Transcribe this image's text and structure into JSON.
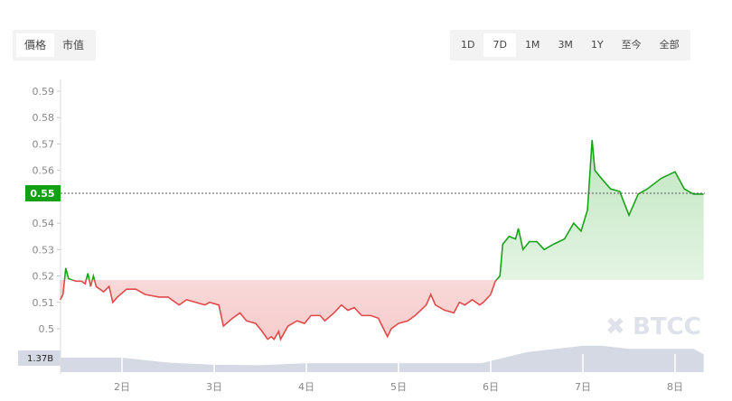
{
  "metric_tabs": [
    {
      "label": "價格",
      "active": true
    },
    {
      "label": "市值",
      "active": false
    }
  ],
  "range_tabs": [
    {
      "label": "1D",
      "active": false
    },
    {
      "label": "7D",
      "active": true
    },
    {
      "label": "1M",
      "active": false
    },
    {
      "label": "3M",
      "active": false
    },
    {
      "label": "1Y",
      "active": false
    },
    {
      "label": "至今",
      "active": false
    },
    {
      "label": "全部",
      "active": false
    }
  ],
  "watermark": "BTCC",
  "colors": {
    "up": "#1aa31a",
    "down": "#e04a4a",
    "current_badge": "#14a014",
    "volume": "#d5d9e4"
  },
  "chart_data": {
    "type": "line",
    "title": "",
    "xlabel": "",
    "ylabel": "",
    "ylim": [
      0.495,
      0.595
    ],
    "y_ticks": [
      "0.59",
      "0.58",
      "0.57",
      "0.56",
      "0.55",
      "0.54",
      "0.53",
      "0.52",
      "0.51",
      "0.5"
    ],
    "x_ticks": [
      {
        "day": 2,
        "label": "2日"
      },
      {
        "day": 3,
        "label": "3日"
      },
      {
        "day": 4,
        "label": "4日"
      },
      {
        "day": 5,
        "label": "5日"
      },
      {
        "day": 6,
        "label": "6日"
      },
      {
        "day": 7,
        "label": "7日"
      },
      {
        "day": 8,
        "label": "8日"
      }
    ],
    "current_price": "0.55",
    "baseline": 0.5185,
    "grid": false,
    "series": [
      {
        "x": [
          1.33,
          1.36,
          1.39,
          1.42,
          1.5,
          1.56,
          1.6,
          1.63,
          1.66,
          1.69,
          1.72,
          1.8,
          1.86,
          1.9,
          1.95,
          2.05,
          2.15,
          2.25,
          2.4,
          2.5,
          2.62,
          2.7,
          2.8,
          2.9,
          2.95,
          3.05,
          3.1,
          3.2,
          3.28,
          3.35,
          3.45,
          3.52,
          3.58,
          3.62,
          3.65,
          3.7,
          3.72,
          3.8,
          3.9,
          3.98,
          4.05,
          4.15,
          4.2,
          4.3,
          4.38,
          4.45,
          4.52,
          4.6,
          4.7,
          4.78,
          4.88,
          4.92,
          5.0,
          5.1,
          5.18,
          5.3,
          5.35,
          5.4,
          5.5,
          5.6,
          5.66,
          5.72,
          5.8,
          5.88,
          5.92,
          6.0,
          6.05,
          6.1,
          6.13,
          6.2,
          6.27,
          6.3,
          6.35,
          6.42,
          6.5,
          6.58,
          6.68,
          6.8,
          6.9,
          6.98,
          7.05,
          7.1,
          7.13,
          7.2,
          7.3,
          7.4,
          7.5,
          7.6,
          7.7,
          7.85,
          8.0,
          8.1,
          8.2,
          8.31
        ],
        "values": [
          0.511,
          0.513,
          0.523,
          0.519,
          0.518,
          0.518,
          0.517,
          0.521,
          0.516,
          0.52,
          0.516,
          0.514,
          0.516,
          0.51,
          0.512,
          0.515,
          0.515,
          0.513,
          0.512,
          0.512,
          0.509,
          0.511,
          0.51,
          0.509,
          0.51,
          0.509,
          0.501,
          0.504,
          0.506,
          0.503,
          0.502,
          0.499,
          0.496,
          0.497,
          0.496,
          0.499,
          0.496,
          0.501,
          0.503,
          0.502,
          0.505,
          0.505,
          0.503,
          0.506,
          0.509,
          0.507,
          0.508,
          0.505,
          0.505,
          0.504,
          0.497,
          0.5,
          0.502,
          0.503,
          0.505,
          0.509,
          0.513,
          0.509,
          0.507,
          0.506,
          0.51,
          0.509,
          0.511,
          0.509,
          0.51,
          0.513,
          0.518,
          0.52,
          0.532,
          0.535,
          0.534,
          0.538,
          0.53,
          0.533,
          0.533,
          0.53,
          0.532,
          0.534,
          0.54,
          0.537,
          0.545,
          0.5715,
          0.56,
          0.557,
          0.553,
          0.552,
          0.543,
          0.551,
          0.553,
          0.557,
          0.5595,
          0.553,
          0.551,
          0.551
        ]
      }
    ],
    "volume": {
      "label": "1.37B",
      "x": [
        1.33,
        2.0,
        2.5,
        3.0,
        3.5,
        4.0,
        5.0,
        5.9,
        6.4,
        7.0,
        7.2,
        7.5,
        8.2,
        8.31
      ],
      "values": [
        1.37,
        1.37,
        0.9,
        0.7,
        0.65,
        0.85,
        0.85,
        0.85,
        1.9,
        2.5,
        2.5,
        2.2,
        2.2,
        1.7
      ]
    }
  }
}
